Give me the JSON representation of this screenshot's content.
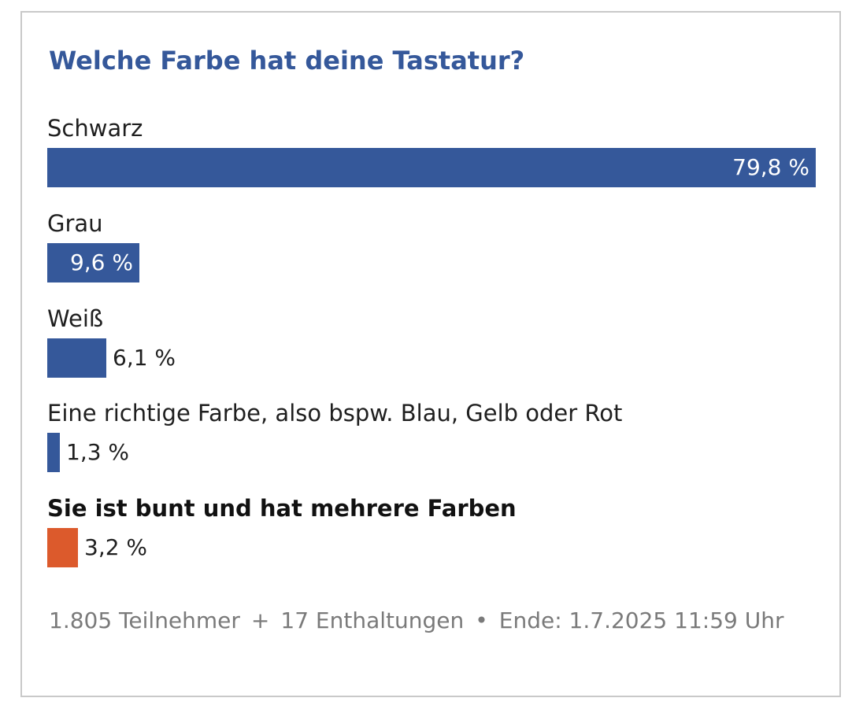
{
  "poll": {
    "title": "Welche Farbe hat deine Tastatur?",
    "footer": {
      "participants": "1.805 Teilnehmer",
      "plus": "+",
      "abstentions": "17 Enthaltungen",
      "bullet": "•",
      "end": "Ende: 1.7.2025 11:59 Uhr"
    }
  },
  "colors": {
    "bar": "#35589a",
    "selected_bar": "#dc5a2c",
    "title": "#35589a"
  },
  "chart_data": {
    "type": "bar",
    "orientation": "horizontal",
    "title": "Welche Farbe hat deine Tastatur?",
    "categories": [
      "Schwarz",
      "Grau",
      "Weiß",
      "Eine richtige Farbe, also bspw. Blau, Gelb oder Rot",
      "Sie ist bunt und hat mehrere Farben"
    ],
    "values": [
      79.8,
      9.6,
      6.1,
      1.3,
      3.2
    ],
    "value_labels": [
      "79,8 %",
      "9,6 %",
      "6,1 %",
      "1,3 %",
      "3,2 %"
    ],
    "selected_index": 4,
    "grid": false,
    "legend": "none"
  }
}
